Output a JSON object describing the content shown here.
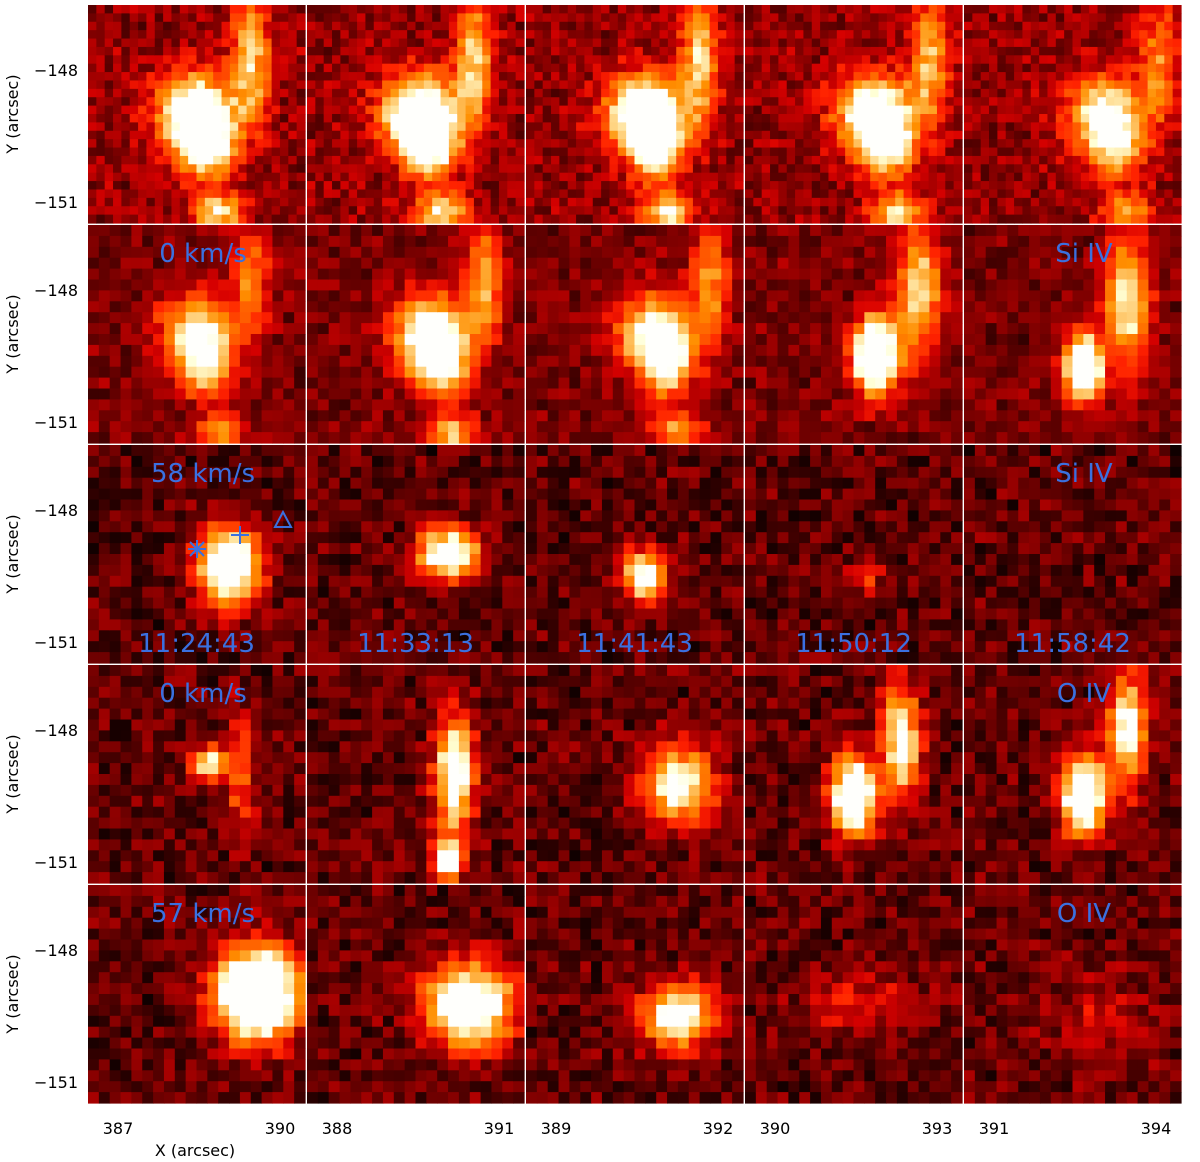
{
  "y_axis": {
    "label": "Y (arcsec)",
    "ticks": [
      "−148",
      "−151"
    ]
  },
  "x_axis": {
    "label": "X (arcsec)",
    "columns": [
      [
        "387",
        "390"
      ],
      [
        "388",
        "391"
      ],
      [
        "389",
        "392"
      ],
      [
        "390",
        "393"
      ],
      [
        "391",
        "394"
      ]
    ]
  },
  "panel_labels": [
    {
      "row": 1,
      "col": 0,
      "text": "0 km/s"
    },
    {
      "row": 1,
      "col": 4,
      "text": "Si IV"
    },
    {
      "row": 2,
      "col": 0,
      "text": "58 km/s"
    },
    {
      "row": 2,
      "col": 4,
      "text": "Si IV"
    },
    {
      "row": 3,
      "col": 0,
      "text": "0 km/s"
    },
    {
      "row": 3,
      "col": 4,
      "text": "O IV"
    },
    {
      "row": 4,
      "col": 0,
      "text": "57 km/s"
    },
    {
      "row": 4,
      "col": 4,
      "text": "O IV"
    }
  ],
  "times": [
    "11:24:43",
    "11:33:13",
    "11:41:43",
    "11:50:12",
    "11:58:42"
  ]
}
